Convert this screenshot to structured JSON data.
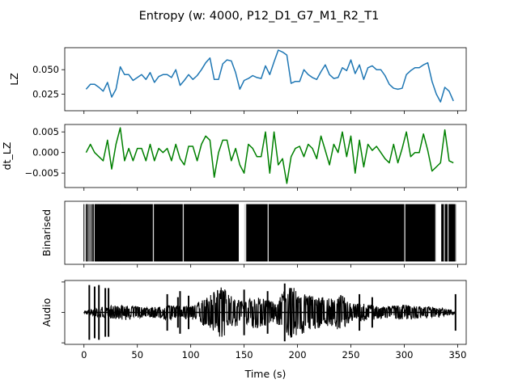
{
  "chart_data": {
    "type": "line",
    "title": "Entropy (w: 4000, P12_D1_G7_M1_R2_T1",
    "xlabel": "Time (s)",
    "xlim": [
      -18,
      358
    ],
    "xticks": [
      0,
      50,
      100,
      150,
      200,
      250,
      300,
      350
    ],
    "xtick_labels": [
      "0",
      "50",
      "100",
      "150",
      "200",
      "250",
      "300",
      "350"
    ],
    "panels": [
      {
        "key": "lz",
        "ylabel": "LZ",
        "type": "line",
        "color": "#1f77b4",
        "ylim": [
          0.008,
          0.0725
        ],
        "yticks": [
          0.025,
          0.05
        ],
        "ytick_labels": [
          "0.025",
          "0.050"
        ],
        "series": {
          "x": [
            2,
            6,
            10,
            14,
            18,
            22,
            26,
            30,
            34,
            38,
            42,
            46,
            50,
            54,
            58,
            62,
            66,
            70,
            74,
            78,
            82,
            86,
            90,
            94,
            98,
            102,
            106,
            110,
            114,
            118,
            122,
            126,
            130,
            134,
            138,
            142,
            146,
            150,
            154,
            158,
            162,
            166,
            170,
            174,
            178,
            182,
            186,
            190,
            194,
            198,
            202,
            206,
            210,
            214,
            218,
            222,
            226,
            230,
            234,
            238,
            242,
            246,
            250,
            254,
            258,
            262,
            266,
            270,
            274,
            278,
            282,
            286,
            290,
            294,
            298,
            302,
            306,
            310,
            314,
            318,
            322,
            326,
            330,
            334,
            338,
            342,
            346
          ],
          "y": [
            0.03,
            0.035,
            0.035,
            0.032,
            0.028,
            0.037,
            0.022,
            0.03,
            0.053,
            0.045,
            0.045,
            0.039,
            0.042,
            0.045,
            0.04,
            0.047,
            0.037,
            0.043,
            0.045,
            0.045,
            0.042,
            0.05,
            0.034,
            0.039,
            0.045,
            0.04,
            0.044,
            0.05,
            0.057,
            0.062,
            0.04,
            0.04,
            0.056,
            0.06,
            0.059,
            0.047,
            0.03,
            0.039,
            0.041,
            0.044,
            0.042,
            0.041,
            0.054,
            0.045,
            0.058,
            0.07,
            0.068,
            0.065,
            0.036,
            0.038,
            0.038,
            0.05,
            0.045,
            0.042,
            0.04,
            0.048,
            0.055,
            0.045,
            0.041,
            0.042,
            0.052,
            0.049,
            0.06,
            0.046,
            0.055,
            0.04,
            0.052,
            0.054,
            0.05,
            0.05,
            0.044,
            0.035,
            0.031,
            0.03,
            0.031,
            0.045,
            0.049,
            0.052,
            0.052,
            0.055,
            0.057,
            0.038,
            0.025,
            0.017,
            0.032,
            0.028,
            0.018
          ]
        }
      },
      {
        "key": "dt_lz",
        "ylabel": "dt_LZ",
        "type": "line",
        "color": "#008000",
        "ylim": [
          -0.0085,
          0.0068
        ],
        "yticks": [
          -0.005,
          0.0,
          0.005
        ],
        "ytick_labels": [
          "−0.005",
          "0.000",
          "0.005"
        ],
        "series": {
          "x": [
            2,
            6,
            10,
            14,
            18,
            22,
            26,
            30,
            34,
            38,
            42,
            46,
            50,
            54,
            58,
            62,
            66,
            70,
            74,
            78,
            82,
            86,
            90,
            94,
            98,
            102,
            106,
            110,
            114,
            118,
            122,
            126,
            130,
            134,
            138,
            142,
            146,
            150,
            154,
            158,
            162,
            166,
            170,
            174,
            178,
            182,
            186,
            190,
            194,
            198,
            202,
            206,
            210,
            214,
            218,
            222,
            226,
            230,
            234,
            238,
            242,
            246,
            250,
            254,
            258,
            262,
            266,
            270,
            274,
            278,
            282,
            286,
            290,
            294,
            298,
            302,
            306,
            310,
            314,
            318,
            322,
            326,
            330,
            334,
            338,
            342,
            346
          ],
          "y": [
            0.0,
            0.002,
            0.0,
            -0.001,
            -0.002,
            0.003,
            -0.004,
            0.002,
            0.006,
            -0.002,
            0.001,
            -0.002,
            0.001,
            0.001,
            -0.002,
            0.002,
            -0.002,
            0.001,
            0.0,
            0.001,
            -0.002,
            0.002,
            -0.0015,
            -0.003,
            0.0015,
            0.0015,
            -0.002,
            0.002,
            0.004,
            0.003,
            -0.006,
            0.0,
            0.003,
            0.003,
            -0.002,
            0.001,
            -0.003,
            -0.005,
            0.002,
            0.001,
            -0.001,
            -0.001,
            0.005,
            -0.005,
            0.005,
            -0.003,
            -0.0015,
            -0.0075,
            -0.001,
            0.001,
            0.0015,
            -0.001,
            0.002,
            0.001,
            -0.0015,
            0.004,
            0.0005,
            -0.003,
            0.002,
            0.0,
            0.005,
            -0.001,
            0.004,
            -0.005,
            0.003,
            -0.0035,
            0.002,
            0.0005,
            0.0015,
            0.0,
            -0.0015,
            -0.0025,
            0.002,
            -0.0025,
            0.001,
            0.005,
            -0.001,
            0.0,
            0.0,
            0.0045,
            0.0005,
            -0.0045,
            -0.0035,
            -0.0025,
            0.0055,
            -0.002,
            -0.0025
          ]
        }
      },
      {
        "key": "binarised",
        "ylabel": "Binarised",
        "type": "binary-raster",
        "color": "#000000",
        "ylim": [
          -0.05,
          1.05
        ],
        "yticks": [],
        "series": {
          "x_range": [
            0,
            348
          ],
          "dense_segments": [
            [
              10,
              145
            ],
            [
              150,
              330
            ],
            [
              335,
              347
            ]
          ],
          "sparse_lines": [
            2,
            3,
            4,
            5.5,
            7,
            8,
            9,
            10.5,
            12,
            13.5,
            15,
            16.5,
            18,
            19,
            20.5,
            22,
            23.5,
            25,
            26.5,
            28,
            29.5,
            31,
            32.5,
            34,
            335,
            336.5,
            338,
            339.5,
            341,
            342.5,
            344,
            345.5,
            347
          ],
          "gaps": [
            [
              64.5,
              65.5
            ],
            [
              92.5,
              93.5
            ],
            [
              147,
              152
            ],
            [
              172,
              173
            ],
            [
              300,
              301
            ],
            [
              329,
              334.5
            ],
            [
              337,
              338
            ],
            [
              340.5,
              341.5
            ]
          ]
        }
      },
      {
        "key": "audio",
        "ylabel": "Audio",
        "type": "waveform",
        "color": "#000000",
        "ylim": [
          -1.05,
          1.05
        ],
        "yticks": [
          -1,
          0,
          1
        ],
        "ytick_labels": [
          "",
          "",
          ""
        ],
        "series": {
          "spikes": [
            [
              5,
              0.9
            ],
            [
              10,
              0.85
            ],
            [
              14,
              -0.9
            ],
            [
              20,
              0.8
            ],
            [
              23,
              -0.8
            ],
            [
              78,
              0.6
            ],
            [
              88,
              -0.5
            ],
            [
              90,
              0.7
            ],
            [
              98,
              -0.55
            ],
            [
              150,
              0.75
            ],
            [
              172,
              -0.7
            ],
            [
              188,
              0.95
            ],
            [
              194,
              0.8
            ],
            [
              258,
              -0.6
            ],
            [
              270,
              -0.5
            ],
            [
              348,
              0.6
            ]
          ],
          "envelope": [
            [
              0,
              0.04
            ],
            [
              20,
              0.2
            ],
            [
              40,
              0.25
            ],
            [
              60,
              0.15
            ],
            [
              80,
              0.25
            ],
            [
              100,
              0.2
            ],
            [
              120,
              0.6
            ],
            [
              125,
              0.9
            ],
            [
              130,
              0.85
            ],
            [
              140,
              0.5
            ],
            [
              150,
              0.35
            ],
            [
              160,
              0.55
            ],
            [
              170,
              0.45
            ],
            [
              180,
              0.35
            ],
            [
              190,
              0.85
            ],
            [
              200,
              0.8
            ],
            [
              210,
              0.6
            ],
            [
              220,
              0.55
            ],
            [
              230,
              0.45
            ],
            [
              240,
              0.6
            ],
            [
              250,
              0.35
            ],
            [
              260,
              0.3
            ],
            [
              280,
              0.2
            ],
            [
              300,
              0.25
            ],
            [
              320,
              0.2
            ],
            [
              335,
              0.15
            ],
            [
              348,
              0.05
            ]
          ]
        }
      }
    ]
  }
}
